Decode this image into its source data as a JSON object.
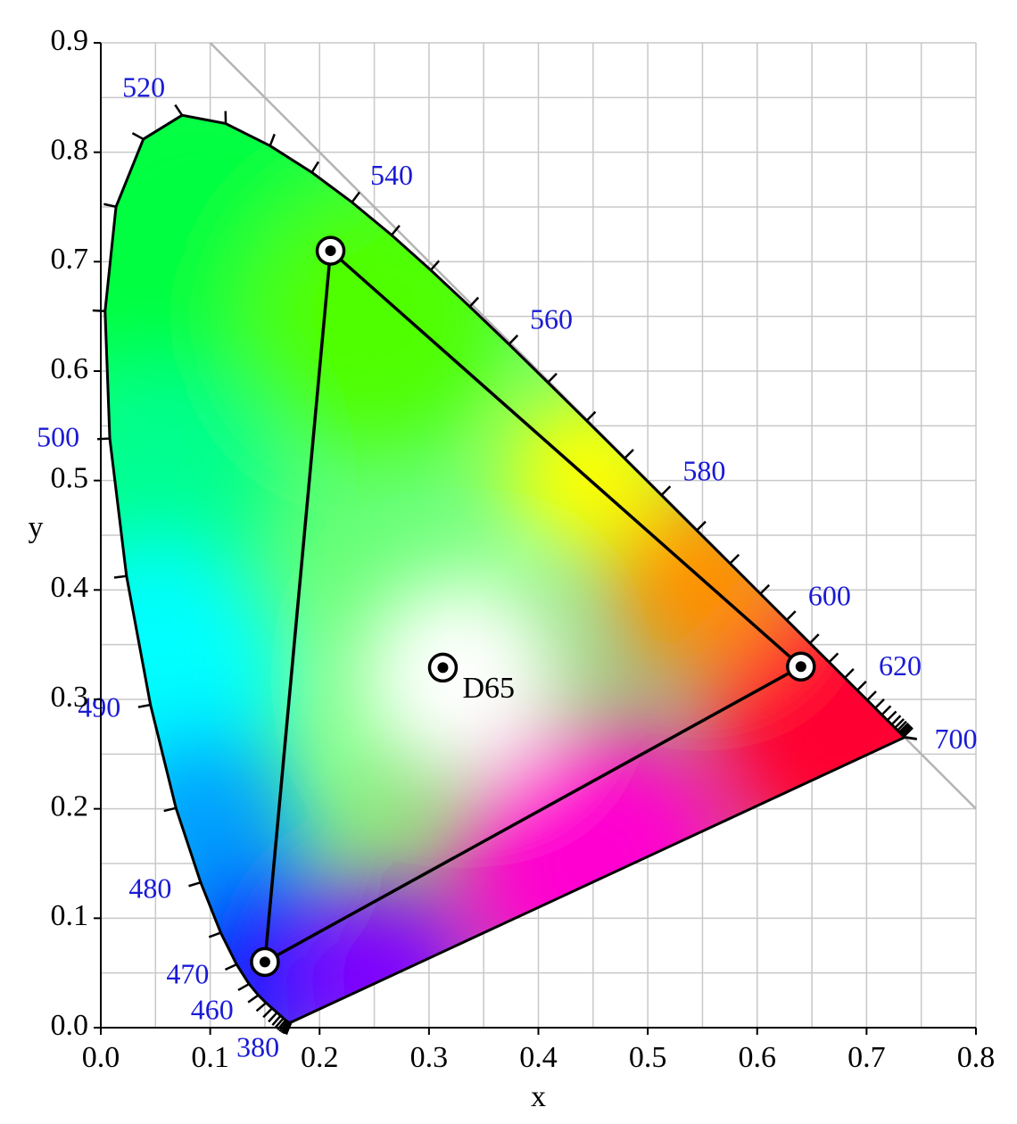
{
  "chart_data": {
    "type": "chromaticity",
    "x_label": "x",
    "y_label": "y",
    "xlim": [
      0,
      0.8
    ],
    "ylim": [
      0,
      0.9
    ],
    "xticks": [
      {
        "value": 0,
        "label": "0.0"
      },
      0.1,
      0.2,
      0.3,
      0.4,
      0.5,
      0.6,
      0.7,
      0.8
    ],
    "yticks": [
      {
        "value": 0,
        "label": "0.0"
      },
      0.1,
      0.2,
      0.3,
      0.4,
      0.5,
      0.6,
      0.7,
      0.8,
      0.9
    ],
    "xminorticks": [
      0.05,
      0.15,
      0.25,
      0.35,
      0.45,
      0.55,
      0.65,
      0.75
    ],
    "yminorticks": [
      0.05,
      0.15,
      0.25,
      0.35,
      0.45,
      0.55,
      0.65,
      0.75,
      0.85
    ],
    "grid": true,
    "guide_line": {
      "x": [
        0.1,
        0.8
      ],
      "y": [
        0.9,
        0.2
      ],
      "color": "#b4b4b4"
    },
    "locus": {
      "wavelengths": [
        380,
        385,
        390,
        395,
        400,
        405,
        410,
        415,
        420,
        425,
        430,
        435,
        440,
        445,
        450,
        455,
        460,
        465,
        470,
        475,
        480,
        485,
        490,
        495,
        500,
        505,
        510,
        515,
        520,
        525,
        530,
        535,
        540,
        545,
        550,
        555,
        560,
        565,
        570,
        575,
        580,
        585,
        590,
        595,
        600,
        605,
        610,
        615,
        620,
        625,
        630,
        635,
        640,
        645,
        650,
        655,
        660,
        665,
        670,
        675,
        680,
        685,
        690,
        695,
        700
      ],
      "x": [
        0.1741,
        0.174,
        0.1738,
        0.1736,
        0.1733,
        0.173,
        0.1726,
        0.1721,
        0.1714,
        0.1703,
        0.1689,
        0.1669,
        0.1644,
        0.1611,
        0.1566,
        0.151,
        0.144,
        0.1355,
        0.1241,
        0.1096,
        0.0913,
        0.0687,
        0.0454,
        0.0235,
        0.0082,
        0.0039,
        0.0139,
        0.0389,
        0.0743,
        0.1142,
        0.1547,
        0.1929,
        0.2296,
        0.2658,
        0.3016,
        0.3373,
        0.3731,
        0.4087,
        0.4441,
        0.4788,
        0.5125,
        0.5448,
        0.5752,
        0.6029,
        0.627,
        0.6482,
        0.6658,
        0.6801,
        0.6915,
        0.7006,
        0.7079,
        0.714,
        0.719,
        0.723,
        0.726,
        0.7283,
        0.73,
        0.7311,
        0.732,
        0.7327,
        0.7334,
        0.734,
        0.7344,
        0.7346,
        0.7347
      ],
      "y": [
        0.005,
        0.005,
        0.0049,
        0.0049,
        0.0048,
        0.0048,
        0.0048,
        0.0048,
        0.0051,
        0.0058,
        0.0069,
        0.0086,
        0.0109,
        0.0138,
        0.0177,
        0.0227,
        0.0297,
        0.0399,
        0.0578,
        0.0868,
        0.1327,
        0.2007,
        0.295,
        0.4127,
        0.5384,
        0.6548,
        0.7502,
        0.812,
        0.8338,
        0.8262,
        0.8059,
        0.7816,
        0.7543,
        0.7243,
        0.6923,
        0.6589,
        0.6245,
        0.5896,
        0.5547,
        0.5202,
        0.4866,
        0.4544,
        0.4242,
        0.3965,
        0.3725,
        0.3514,
        0.334,
        0.3197,
        0.3083,
        0.2993,
        0.292,
        0.2859,
        0.2809,
        0.277,
        0.274,
        0.2717,
        0.27,
        0.2689,
        0.268,
        0.2673,
        0.2666,
        0.266,
        0.2656,
        0.2654,
        0.2653
      ],
      "color": "#000000"
    },
    "wavelength_labels": [
      380,
      460,
      470,
      480,
      490,
      500,
      520,
      540,
      560,
      580,
      600,
      620,
      700
    ],
    "wavelength_label_color": "#1a1ad6",
    "primaries": {
      "x": [
        0.64,
        0.21,
        0.15
      ],
      "y": [
        0.33,
        0.71,
        0.06
      ]
    },
    "white_point": {
      "name": "D65",
      "x": 0.3127,
      "y": 0.329
    }
  }
}
